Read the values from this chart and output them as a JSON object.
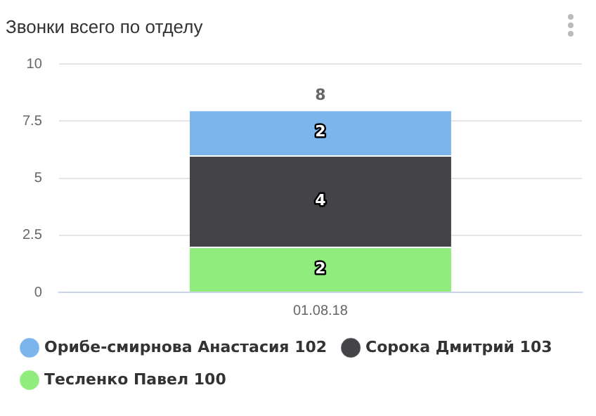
{
  "chart_data": {
    "type": "bar",
    "title": "Звонки всего по отделу",
    "categories": [
      "01.08.18"
    ],
    "stacked": true,
    "series": [
      {
        "name": "Тесленко Павел 100",
        "color": "#90ed7d",
        "values": [
          2
        ]
      },
      {
        "name": "Сорока Дмитрий 103",
        "color": "#434348",
        "values": [
          4
        ]
      },
      {
        "name": "Орибе-смирнова Анастасия 102",
        "color": "#7cb5ec",
        "values": [
          2
        ]
      }
    ],
    "ylim": [
      0,
      10
    ],
    "yticks": [
      0,
      2.5,
      5,
      7.5,
      10
    ],
    "grid": "y",
    "legend": "bottom",
    "data_labels": true,
    "totals": [
      "8"
    ]
  }
}
